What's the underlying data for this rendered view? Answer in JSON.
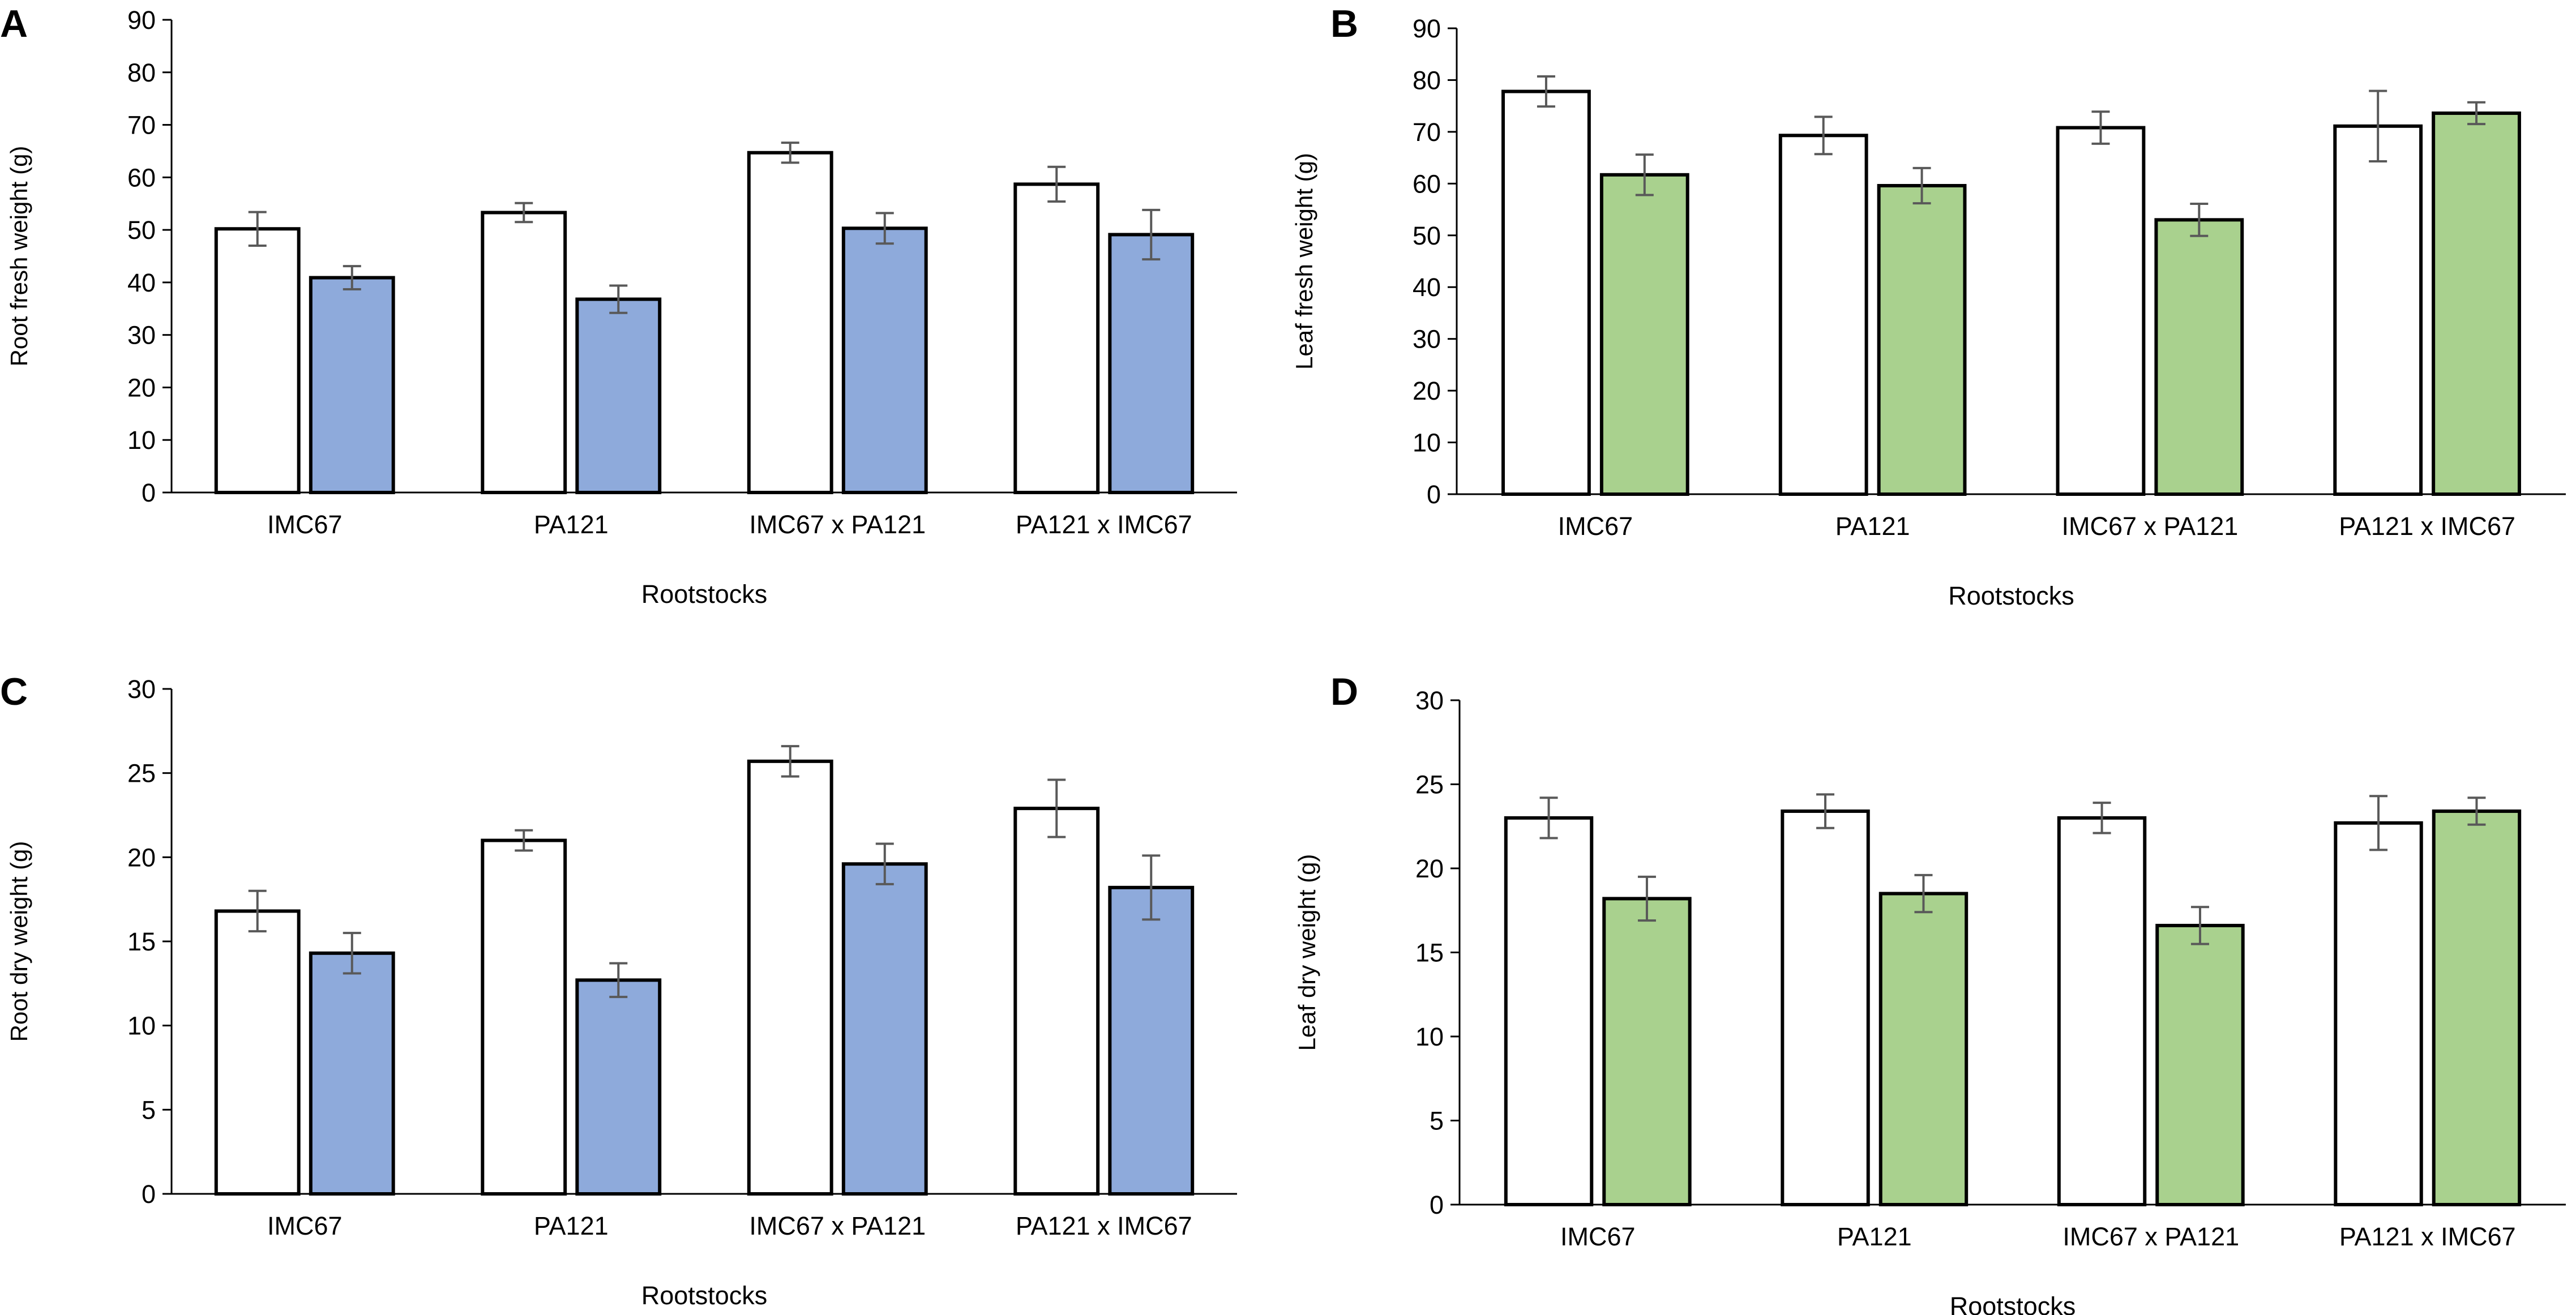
{
  "colors": {
    "white_bar": "#ffffff",
    "blue_bar": "#8eaadb",
    "green_bar": "#a9d18e",
    "bar_outline": "#000000",
    "axis": "#000000",
    "error_bar": "#595959"
  },
  "chart_data": [
    {
      "panel": "A",
      "type": "bar",
      "ylabel": "Root fresh weight (g)",
      "xlabel": "Rootstocks",
      "ylim": [
        0,
        90
      ],
      "yticks": [
        0,
        10,
        20,
        30,
        40,
        50,
        60,
        70,
        80,
        90
      ],
      "categories": [
        "IMC67",
        "PA121",
        "IMC67 x PA121",
        "PA121 x IMC67"
      ],
      "series": [
        {
          "fill": "#ffffff",
          "values": [
            50.2,
            53.3,
            64.7,
            58.7
          ],
          "errors": [
            3.2,
            1.8,
            1.9,
            3.3
          ]
        },
        {
          "fill": "#8eaadb",
          "values": [
            40.9,
            36.8,
            50.3,
            49.1
          ],
          "errors": [
            2.2,
            2.6,
            2.9,
            4.7
          ]
        }
      ]
    },
    {
      "panel": "B",
      "type": "bar",
      "ylabel": "Leaf fresh weight (g)",
      "xlabel": "Rootstocks",
      "ylim": [
        0,
        90
      ],
      "yticks": [
        0,
        10,
        20,
        30,
        40,
        50,
        60,
        70,
        80,
        90
      ],
      "categories": [
        "IMC67",
        "PA121",
        "IMC67 x PA121",
        "PA121 x IMC67"
      ],
      "series": [
        {
          "fill": "#ffffff",
          "values": [
            77.8,
            69.3,
            70.8,
            71.1
          ],
          "errors": [
            2.9,
            3.6,
            3.1,
            6.8
          ]
        },
        {
          "fill": "#a9d18e",
          "values": [
            61.7,
            59.6,
            53.0,
            73.6
          ],
          "errors": [
            3.9,
            3.4,
            3.1,
            2.1
          ]
        }
      ]
    },
    {
      "panel": "C",
      "type": "bar",
      "ylabel": "Root dry weight (g)",
      "xlabel": "Rootstocks",
      "ylim": [
        0,
        30
      ],
      "yticks": [
        0,
        5,
        10,
        15,
        20,
        25,
        30
      ],
      "categories": [
        "IMC67",
        "PA121",
        "IMC67 x PA121",
        "PA121 x IMC67"
      ],
      "series": [
        {
          "fill": "#ffffff",
          "values": [
            16.8,
            21.0,
            25.7,
            22.9
          ],
          "errors": [
            1.2,
            0.6,
            0.9,
            1.7
          ]
        },
        {
          "fill": "#8eaadb",
          "values": [
            14.3,
            12.7,
            19.6,
            18.2
          ],
          "errors": [
            1.2,
            1.0,
            1.2,
            1.9
          ]
        }
      ]
    },
    {
      "panel": "D",
      "type": "bar",
      "ylabel": "Leaf dry weight (g)",
      "xlabel": "Rootstocks",
      "ylim": [
        0,
        30
      ],
      "yticks": [
        0,
        5,
        10,
        15,
        20,
        25,
        30
      ],
      "categories": [
        "IMC67",
        "PA121",
        "IMC67 x PA121",
        "PA121 x IMC67"
      ],
      "series": [
        {
          "fill": "#ffffff",
          "values": [
            23.0,
            23.4,
            23.0,
            22.7
          ],
          "errors": [
            1.2,
            1.0,
            0.9,
            1.6
          ]
        },
        {
          "fill": "#a9d18e",
          "values": [
            18.2,
            18.5,
            16.6,
            23.4
          ],
          "errors": [
            1.3,
            1.1,
            1.1,
            0.8
          ]
        }
      ]
    }
  ]
}
